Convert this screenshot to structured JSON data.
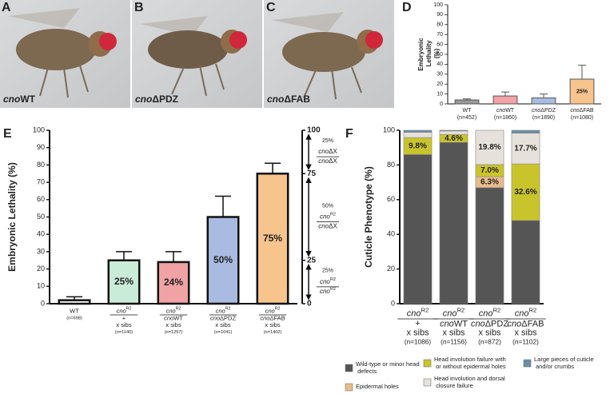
{
  "panels": [
    "A",
    "B",
    "C",
    "D",
    "E",
    "F"
  ],
  "photos": [
    {
      "italic": "cno",
      "plain": "WT"
    },
    {
      "italic": "cno",
      "plain": "ΔPDZ"
    },
    {
      "italic": "cno",
      "plain": "ΔFAB"
    }
  ],
  "chart_data": [
    {
      "type": "bar",
      "ylabel": "Embryonic Lethality (%)",
      "categories": [
        "WT",
        "cnoWT",
        "cnoΔPDZ",
        "cnoΔFAB"
      ],
      "counts": [
        "(n=452)",
        "(n=1860)",
        "(n=1890)",
        "(n=1080)"
      ],
      "values": [
        4,
        8,
        6,
        25
      ],
      "errors": [
        1,
        4,
        4,
        14
      ],
      "value_labels": [
        null,
        null,
        null,
        "25%"
      ],
      "colors": [
        "#9a9a9a",
        "#f2a3a6",
        "#a9bde2",
        "#f6c48c"
      ],
      "ylim": [
        0,
        100
      ],
      "yticks": [
        0,
        10,
        20,
        30,
        40,
        50,
        60,
        70,
        80,
        90,
        100
      ]
    },
    {
      "type": "bar",
      "ylabel": "Embryonic Lethality (%)",
      "numerators": [
        null,
        "cno",
        "cno",
        "cno",
        "cno"
      ],
      "numerator_sups": [
        null,
        "R2",
        "R2",
        "R2",
        "R2"
      ],
      "categories": [
        "WT",
        "+",
        "cnoWT",
        "cnoΔPDZ",
        "cnoΔFAB"
      ],
      "crosses": [
        null,
        "x sibs",
        "x sibs",
        "x sibs",
        "x sibs"
      ],
      "counts": [
        "(n=698)",
        "(n=1140)",
        "(n=1257)",
        "(n=1041)",
        "(n=1402)"
      ],
      "values": [
        2,
        25,
        24,
        50,
        75
      ],
      "errors": [
        2,
        5,
        6,
        12,
        6
      ],
      "value_labels": [
        null,
        "25%",
        "24%",
        "50%",
        "75%"
      ],
      "colors": [
        "#ffffff",
        "#c8ecd8",
        "#f0a2a4",
        "#a9bbe0",
        "#f6c48c"
      ],
      "ylim": [
        0,
        100
      ],
      "yticks": [
        0,
        10,
        20,
        30,
        40,
        50,
        60,
        70,
        80,
        90,
        100
      ],
      "y2lim": [
        0,
        100
      ],
      "y2ticks": [
        0,
        25,
        75,
        100
      ],
      "annotations": [
        {
          "pct": "25%",
          "top": "cnoΔX",
          "bottom": "cnoΔX"
        },
        {
          "pct": "50%",
          "top": "cnoR2",
          "bottom": "cnoΔX"
        },
        {
          "pct": "25%",
          "top": "cnoR2",
          "bottom": "cnoR2"
        }
      ]
    },
    {
      "type": "stacked_bar",
      "ylabel": "Cuticle Phenotype (%)",
      "numerators": [
        "cno",
        "cno",
        "cno",
        "cno"
      ],
      "numerator_sups": [
        "R2",
        "R2",
        "R2",
        "R2"
      ],
      "categories": [
        "+",
        "cnoWT",
        "cnoΔPDZ",
        "cnoΔFAB"
      ],
      "crosses": [
        "x sibs",
        "x sibs",
        "x sibs",
        "x sibs"
      ],
      "counts": [
        "(n=1086)",
        "(n=1156)",
        "(n=872)",
        "(n=1102)"
      ],
      "series": [
        {
          "name": "Wild-type or minor head defects",
          "color": "#555555",
          "values": [
            86,
            93,
            66.9,
            48
          ],
          "value_labels": [
            null,
            null,
            null,
            null
          ]
        },
        {
          "name": "Epidermal holes",
          "color": "#e9bb8c",
          "values": [
            0,
            0,
            6.3,
            0
          ],
          "value_labels": [
            null,
            null,
            "6.3%",
            null
          ]
        },
        {
          "name": "Head involution failure with or without epidermal holes",
          "color": "#c9c42c",
          "values": [
            9.8,
            4.6,
            7.0,
            32.6
          ],
          "value_labels": [
            "9.8%",
            "4.6%",
            "7.0%",
            "32.6%"
          ]
        },
        {
          "name": "Head involution and dorsal closure failure",
          "color": "#e6e1db",
          "values": [
            3,
            2,
            19.8,
            17.7
          ],
          "value_labels": [
            null,
            null,
            "19.8%",
            "17.7%"
          ]
        },
        {
          "name": "Large pieces of cuticle and/or crumbs",
          "color": "#6a8fa5",
          "values": [
            1.2,
            0.4,
            0,
            1.7
          ],
          "value_labels": [
            null,
            null,
            null,
            null
          ]
        }
      ],
      "ylim": [
        0,
        100
      ],
      "yticks": [
        0,
        20,
        40,
        60,
        80,
        100
      ]
    }
  ]
}
